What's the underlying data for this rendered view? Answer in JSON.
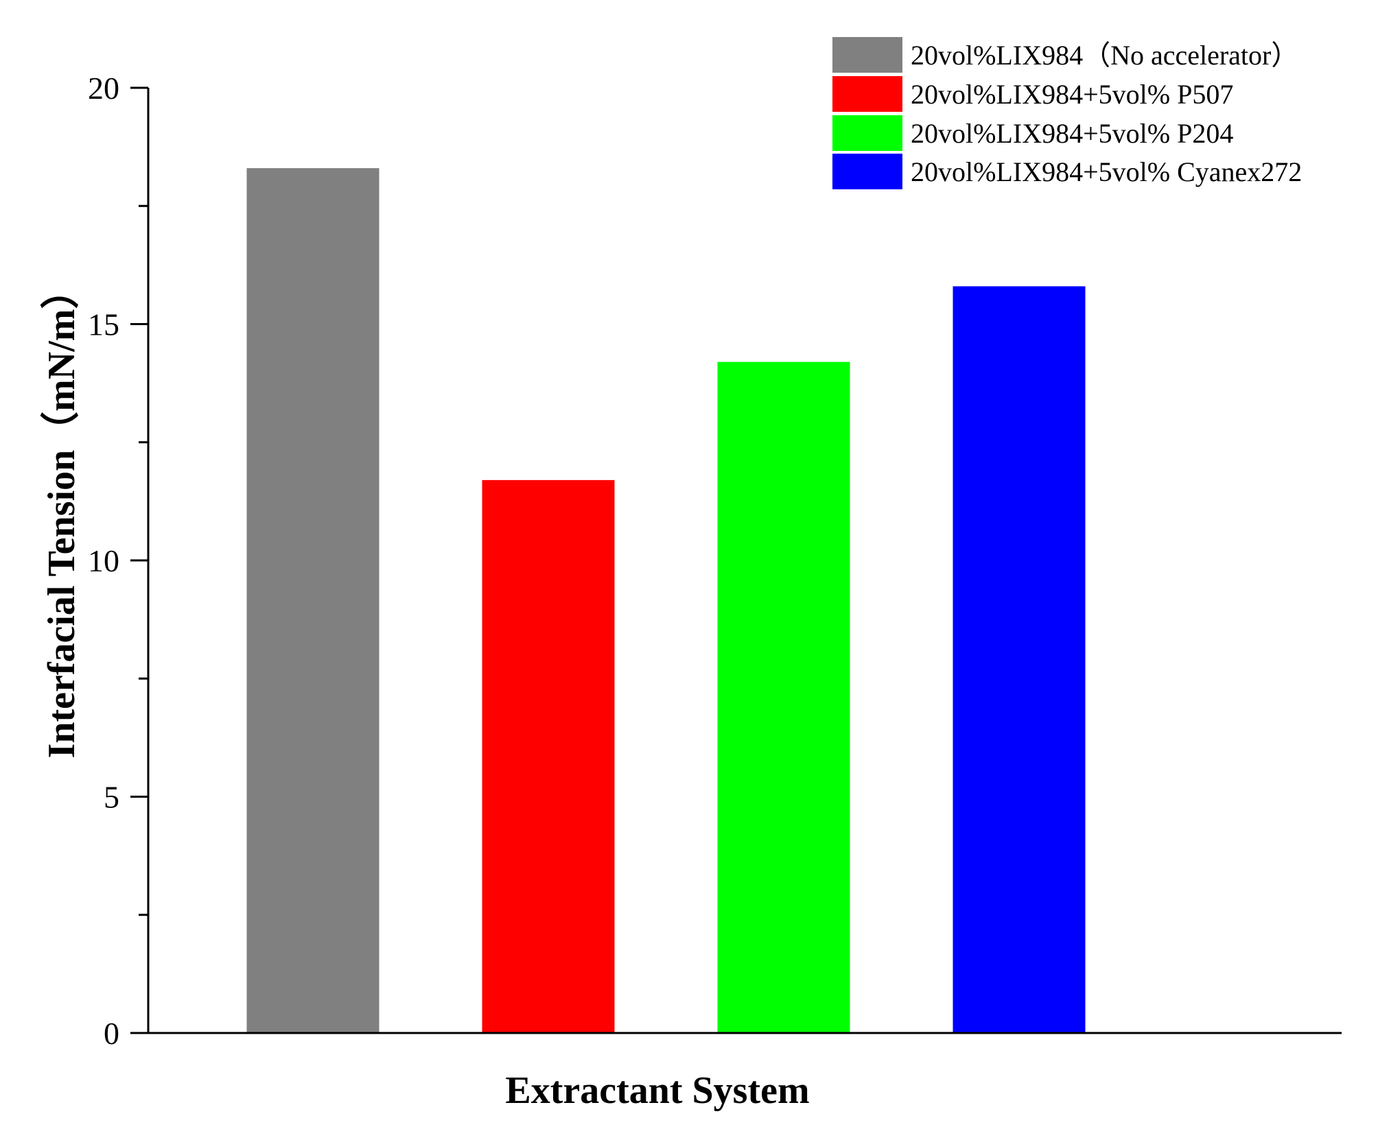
{
  "chart_data": {
    "type": "bar",
    "categories": [
      "20vol%LIX984（No accelerator）",
      "20vol%LIX984+5vol% P507",
      "20vol%LIX984+5vol% P204",
      "20vol%LIX984+5vol% Cyanex272"
    ],
    "series": [
      {
        "values": [
          18.3,
          11.7,
          14.2,
          15.8
        ]
      }
    ],
    "colors": [
      "#808080",
      "#ff0000",
      "#00ff00",
      "#0000ff"
    ],
    "xlabel": "Extractant System",
    "ylabel": "Interfacial Tension（mN/m）",
    "ylim": [
      0,
      20
    ],
    "yticks": [
      0,
      5,
      10,
      15,
      20
    ],
    "yticks_minor": [
      2.5,
      7.5,
      12.5,
      17.5
    ],
    "grid": false,
    "legend": {
      "position": "top-right",
      "entries": [
        "20vol%LIX984（No accelerator）",
        "20vol%LIX984+5vol% P507",
        "20vol%LIX984+5vol% P204",
        "20vol%LIX984+5vol% Cyanex272"
      ]
    }
  }
}
